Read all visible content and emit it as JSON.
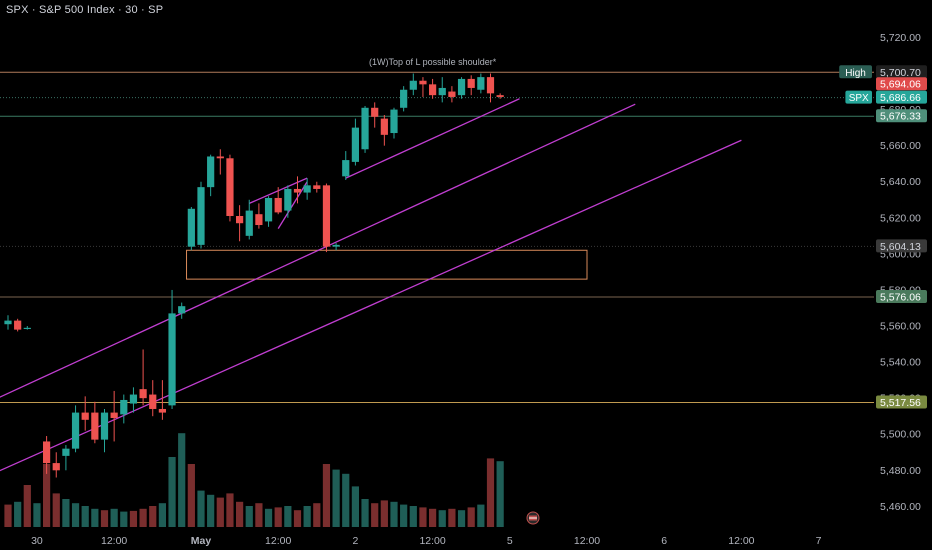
{
  "chart_title": "SPX · S&P 500 Index · 30 · SP",
  "chart_data": {
    "type": "candlestick",
    "symbol": "SPX",
    "ylim": [
      5453,
      5733
    ],
    "y_ticks": [
      5460,
      5480,
      5500,
      5520,
      5540,
      5560,
      5580,
      5600,
      5620,
      5640,
      5660,
      5680,
      5700,
      5720
    ],
    "y_tick_labels": [
      "5,460.00",
      "5,480.00",
      "5,500.00",
      "5,520.00",
      "5,540.00",
      "5,560.00",
      "5,580.00",
      "5,600.00",
      "5,620.00",
      "5,640.00",
      "5,660.00",
      "5,680.00",
      "5,700.00",
      "5,720.00"
    ],
    "x_labels": [
      {
        "slot": 3,
        "text": "30"
      },
      {
        "slot": 11,
        "text": "12:00"
      },
      {
        "slot": 20,
        "text": "May"
      },
      {
        "slot": 28,
        "text": "12:00"
      },
      {
        "slot": 36,
        "text": "2"
      },
      {
        "slot": 44,
        "text": "12:00"
      },
      {
        "slot": 52,
        "text": "5"
      },
      {
        "slot": 60,
        "text": "12:00"
      },
      {
        "slot": 68,
        "text": "6"
      },
      {
        "slot": 76,
        "text": "12:00"
      },
      {
        "slot": 84,
        "text": "7"
      }
    ],
    "candles": [
      {
        "slot": 0,
        "o": 5561,
        "h": 5566,
        "l": 5558,
        "c": 5563
      },
      {
        "slot": 1,
        "o": 5563,
        "h": 5564,
        "l": 5557,
        "c": 5558
      },
      {
        "slot": 2,
        "o": 5559,
        "h": 5560,
        "l": 5558,
        "c": 5559
      },
      {
        "slot": 4,
        "o": 5496,
        "h": 5499,
        "l": 5478,
        "c": 5484
      },
      {
        "slot": 5,
        "o": 5484,
        "h": 5490,
        "l": 5476,
        "c": 5480
      },
      {
        "slot": 6,
        "o": 5488,
        "h": 5494,
        "l": 5480,
        "c": 5492
      },
      {
        "slot": 7,
        "o": 5492,
        "h": 5516,
        "l": 5490,
        "c": 5512
      },
      {
        "slot": 8,
        "o": 5512,
        "h": 5521,
        "l": 5502,
        "c": 5508
      },
      {
        "slot": 9,
        "o": 5512,
        "h": 5518,
        "l": 5495,
        "c": 5497
      },
      {
        "slot": 10,
        "o": 5497,
        "h": 5514,
        "l": 5490,
        "c": 5512
      },
      {
        "slot": 11,
        "o": 5512,
        "h": 5524,
        "l": 5496,
        "c": 5509
      },
      {
        "slot": 12,
        "o": 5511,
        "h": 5522,
        "l": 5506,
        "c": 5519
      },
      {
        "slot": 13,
        "o": 5517,
        "h": 5526,
        "l": 5512,
        "c": 5522
      },
      {
        "slot": 14,
        "o": 5525,
        "h": 5547,
        "l": 5516,
        "c": 5520
      },
      {
        "slot": 15,
        "o": 5522,
        "h": 5530,
        "l": 5510,
        "c": 5514
      },
      {
        "slot": 16,
        "o": 5514,
        "h": 5530,
        "l": 5508,
        "c": 5512
      },
      {
        "slot": 17,
        "o": 5516,
        "h": 5580,
        "l": 5514,
        "c": 5567
      },
      {
        "slot": 18,
        "o": 5567,
        "h": 5573,
        "l": 5564,
        "c": 5571
      },
      {
        "slot": 19,
        "o": 5604,
        "h": 5626,
        "l": 5602,
        "c": 5625
      },
      {
        "slot": 20,
        "o": 5605,
        "h": 5640,
        "l": 5603,
        "c": 5637
      },
      {
        "slot": 21,
        "o": 5637,
        "h": 5655,
        "l": 5632,
        "c": 5654
      },
      {
        "slot": 22,
        "o": 5654,
        "h": 5658,
        "l": 5644,
        "c": 5653
      },
      {
        "slot": 23,
        "o": 5653,
        "h": 5655,
        "l": 5618,
        "c": 5621
      },
      {
        "slot": 24,
        "o": 5621,
        "h": 5627,
        "l": 5607,
        "c": 5617
      },
      {
        "slot": 25,
        "o": 5610,
        "h": 5630,
        "l": 5608,
        "c": 5624
      },
      {
        "slot": 26,
        "o": 5622,
        "h": 5628,
        "l": 5614,
        "c": 5616
      },
      {
        "slot": 27,
        "o": 5618,
        "h": 5632,
        "l": 5615,
        "c": 5631
      },
      {
        "slot": 28,
        "o": 5631,
        "h": 5637,
        "l": 5622,
        "c": 5623
      },
      {
        "slot": 29,
        "o": 5624,
        "h": 5638,
        "l": 5620,
        "c": 5636
      },
      {
        "slot": 30,
        "o": 5636,
        "h": 5643,
        "l": 5628,
        "c": 5634
      },
      {
        "slot": 31,
        "o": 5634,
        "h": 5642,
        "l": 5630,
        "c": 5638
      },
      {
        "slot": 32,
        "o": 5638,
        "h": 5640,
        "l": 5634,
        "c": 5636
      },
      {
        "slot": 33,
        "o": 5638,
        "h": 5639,
        "l": 5601,
        "c": 5604
      },
      {
        "slot": 34,
        "o": 5604,
        "h": 5606,
        "l": 5602,
        "c": 5605
      },
      {
        "slot": 35,
        "o": 5643,
        "h": 5657,
        "l": 5641,
        "c": 5652
      },
      {
        "slot": 36,
        "o": 5651,
        "h": 5675,
        "l": 5649,
        "c": 5670
      },
      {
        "slot": 37,
        "o": 5658,
        "h": 5682,
        "l": 5656,
        "c": 5681
      },
      {
        "slot": 38,
        "o": 5681,
        "h": 5684,
        "l": 5670,
        "c": 5676
      },
      {
        "slot": 39,
        "o": 5675,
        "h": 5677,
        "l": 5660,
        "c": 5666
      },
      {
        "slot": 40,
        "o": 5667,
        "h": 5681,
        "l": 5664,
        "c": 5680
      },
      {
        "slot": 41,
        "o": 5681,
        "h": 5693,
        "l": 5679,
        "c": 5691
      },
      {
        "slot": 42,
        "o": 5691,
        "h": 5700,
        "l": 5688,
        "c": 5696
      },
      {
        "slot": 43,
        "o": 5696,
        "h": 5698,
        "l": 5687,
        "c": 5694
      },
      {
        "slot": 44,
        "o": 5694,
        "h": 5697,
        "l": 5686,
        "c": 5688
      },
      {
        "slot": 45,
        "o": 5688,
        "h": 5698,
        "l": 5684,
        "c": 5692
      },
      {
        "slot": 46,
        "o": 5690,
        "h": 5693,
        "l": 5684,
        "c": 5687
      },
      {
        "slot": 47,
        "o": 5688,
        "h": 5698,
        "l": 5686,
        "c": 5697
      },
      {
        "slot": 48,
        "o": 5697,
        "h": 5699,
        "l": 5688,
        "c": 5692
      },
      {
        "slot": 49,
        "o": 5691,
        "h": 5700,
        "l": 5689,
        "c": 5698
      },
      {
        "slot": 50,
        "o": 5698,
        "h": 5700,
        "l": 5684,
        "c": 5689
      },
      {
        "slot": 51,
        "o": 5688,
        "h": 5689,
        "l": 5686,
        "c": 5687
      }
    ],
    "volumes": [
      {
        "slot": 0,
        "v": 0.32,
        "dir": "down"
      },
      {
        "slot": 1,
        "v": 0.36,
        "dir": "up"
      },
      {
        "slot": 2,
        "v": 0.6,
        "dir": "down"
      },
      {
        "slot": 3,
        "v": 0.34,
        "dir": "up"
      },
      {
        "slot": 4,
        "v": 0.9,
        "dir": "down"
      },
      {
        "slot": 5,
        "v": 0.48,
        "dir": "down"
      },
      {
        "slot": 6,
        "v": 0.4,
        "dir": "up"
      },
      {
        "slot": 7,
        "v": 0.34,
        "dir": "up"
      },
      {
        "slot": 8,
        "v": 0.3,
        "dir": "up"
      },
      {
        "slot": 9,
        "v": 0.26,
        "dir": "up"
      },
      {
        "slot": 10,
        "v": 0.24,
        "dir": "down"
      },
      {
        "slot": 11,
        "v": 0.26,
        "dir": "up"
      },
      {
        "slot": 12,
        "v": 0.22,
        "dir": "up"
      },
      {
        "slot": 13,
        "v": 0.23,
        "dir": "down"
      },
      {
        "slot": 14,
        "v": 0.26,
        "dir": "down"
      },
      {
        "slot": 15,
        "v": 0.3,
        "dir": "down"
      },
      {
        "slot": 16,
        "v": 0.34,
        "dir": "up"
      },
      {
        "slot": 17,
        "v": 1.0,
        "dir": "up"
      },
      {
        "slot": 18,
        "v": 1.34,
        "dir": "up"
      },
      {
        "slot": 19,
        "v": 0.9,
        "dir": "down"
      },
      {
        "slot": 20,
        "v": 0.52,
        "dir": "up"
      },
      {
        "slot": 21,
        "v": 0.46,
        "dir": "up"
      },
      {
        "slot": 22,
        "v": 0.42,
        "dir": "down"
      },
      {
        "slot": 23,
        "v": 0.48,
        "dir": "down"
      },
      {
        "slot": 24,
        "v": 0.36,
        "dir": "down"
      },
      {
        "slot": 25,
        "v": 0.3,
        "dir": "up"
      },
      {
        "slot": 26,
        "v": 0.34,
        "dir": "down"
      },
      {
        "slot": 27,
        "v": 0.26,
        "dir": "up"
      },
      {
        "slot": 28,
        "v": 0.28,
        "dir": "down"
      },
      {
        "slot": 29,
        "v": 0.3,
        "dir": "up"
      },
      {
        "slot": 30,
        "v": 0.24,
        "dir": "down"
      },
      {
        "slot": 31,
        "v": 0.3,
        "dir": "up"
      },
      {
        "slot": 32,
        "v": 0.34,
        "dir": "down"
      },
      {
        "slot": 33,
        "v": 0.9,
        "dir": "down"
      },
      {
        "slot": 34,
        "v": 0.82,
        "dir": "up"
      },
      {
        "slot": 35,
        "v": 0.76,
        "dir": "up"
      },
      {
        "slot": 36,
        "v": 0.58,
        "dir": "up"
      },
      {
        "slot": 37,
        "v": 0.4,
        "dir": "up"
      },
      {
        "slot": 38,
        "v": 0.34,
        "dir": "down"
      },
      {
        "slot": 39,
        "v": 0.38,
        "dir": "down"
      },
      {
        "slot": 40,
        "v": 0.36,
        "dir": "up"
      },
      {
        "slot": 41,
        "v": 0.32,
        "dir": "up"
      },
      {
        "slot": 42,
        "v": 0.3,
        "dir": "up"
      },
      {
        "slot": 43,
        "v": 0.28,
        "dir": "down"
      },
      {
        "slot": 44,
        "v": 0.26,
        "dir": "down"
      },
      {
        "slot": 45,
        "v": 0.24,
        "dir": "up"
      },
      {
        "slot": 46,
        "v": 0.26,
        "dir": "down"
      },
      {
        "slot": 47,
        "v": 0.24,
        "dir": "up"
      },
      {
        "slot": 48,
        "v": 0.28,
        "dir": "down"
      },
      {
        "slot": 49,
        "v": 0.32,
        "dir": "up"
      },
      {
        "slot": 50,
        "v": 0.98,
        "dir": "down"
      },
      {
        "slot": 51,
        "v": 0.94,
        "dir": "up"
      }
    ],
    "horizontal_levels": [
      {
        "value": 5700.7,
        "color": "#b07a5a"
      },
      {
        "value": 5686.66,
        "color": "#3a6f62",
        "dotted": true
      },
      {
        "value": 5676.33,
        "color": "#3b7a62"
      },
      {
        "value": 5604.13,
        "color": "#3a3a3a",
        "dotted": true
      },
      {
        "value": 5576.06,
        "color": "#7a6550"
      },
      {
        "value": 5517.56,
        "color": "#c09a50"
      }
    ],
    "price_labels": [
      {
        "value": 5700.7,
        "text": "5,700.70",
        "tag": "High",
        "bg": "#1f1f1f",
        "fg": "#d1d4dc",
        "tag_bg": "#2b5e54"
      },
      {
        "value": 5694.06,
        "text": "5,694.06",
        "bg": "#e04b4b",
        "fg": "#ffffff"
      },
      {
        "value": 5686.66,
        "text": "5,686.66",
        "tag": "SPX",
        "bg": "#26a69a",
        "fg": "#ffffff",
        "tag_bg": "#26a69a"
      },
      {
        "value": 5676.33,
        "text": "5,676.33",
        "bg": "#4f8f7a",
        "fg": "#ffffff"
      },
      {
        "value": 5604.13,
        "text": "5,604.13",
        "bg": "#3a3a3a",
        "fg": "#d1d4dc"
      },
      {
        "value": 5576.06,
        "text": "5,576.06",
        "bg": "#4a7a5c",
        "fg": "#ffffff"
      },
      {
        "value": 5517.56,
        "text": "5,517.56",
        "bg": "#7a8a40",
        "fg": "#ffffff"
      }
    ],
    "trend_lines": [
      {
        "from": [
          -10,
          5498
        ],
        "to": [
          65,
          5683
        ],
        "color": "#c03ed0"
      },
      {
        "from": [
          -10,
          5458
        ],
        "to": [
          76,
          5663
        ],
        "color": "#c03ed0"
      },
      {
        "from": [
          35,
          5642
        ],
        "to": [
          53,
          5686
        ],
        "color": "#c03ed0"
      },
      {
        "from": [
          25,
          5628
        ],
        "to": [
          31,
          5642
        ],
        "color": "#c03ed0"
      },
      {
        "from": [
          28,
          5614
        ],
        "to": [
          31,
          5640
        ],
        "color": "#c03ed0"
      }
    ],
    "zones": [
      {
        "slot_from": 18.5,
        "slot_to": 60,
        "value_from": 5602,
        "value_to": 5586,
        "color": "#d98a5a"
      }
    ],
    "annotations": [
      {
        "slot": 44,
        "value": 5703,
        "text": "(1W)Top of L possible shoulder*",
        "color": "#b0b4bc"
      }
    ],
    "colors": {
      "up": "#26a69a",
      "down": "#ef5350",
      "vol_up": "#1f5e57",
      "vol_down": "#7a2e2e"
    }
  }
}
